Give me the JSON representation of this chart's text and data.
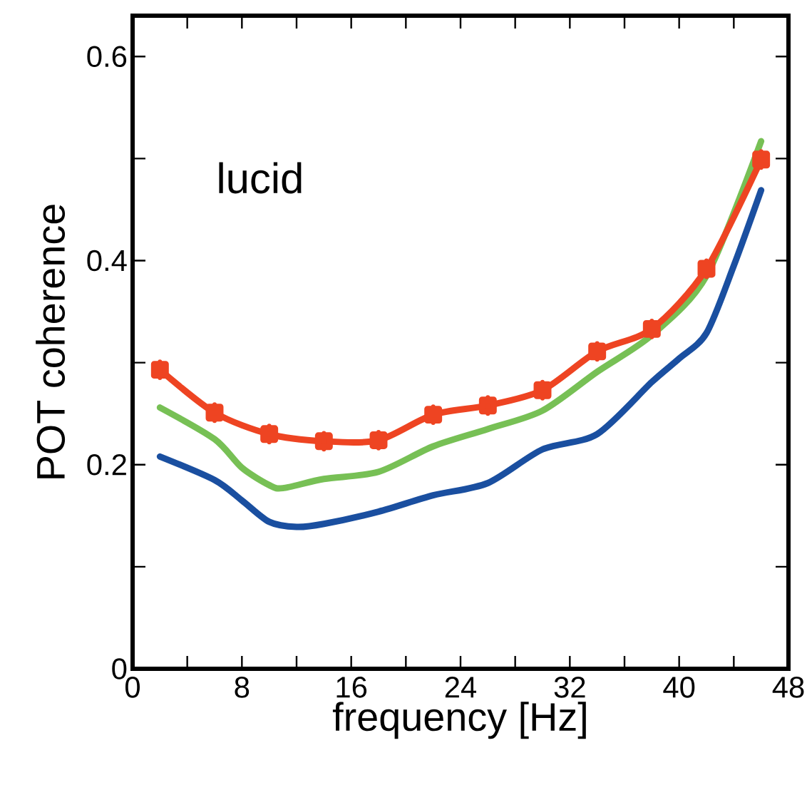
{
  "chart_data": {
    "type": "line",
    "xlabel": "frequency [Hz]",
    "ylabel": "POT coherence",
    "annotations": [
      "lucid"
    ],
    "xlim": [
      0,
      48
    ],
    "ylim": [
      0,
      0.64
    ],
    "xticks": [
      0,
      {
        "value": 4,
        "label": null
      },
      8,
      {
        "value": 12,
        "label": null
      },
      16,
      {
        "value": 20,
        "label": null
      },
      24,
      {
        "value": 28,
        "label": null
      },
      32,
      {
        "value": 36,
        "label": null
      },
      40,
      {
        "value": 44,
        "label": null
      },
      48
    ],
    "yticks": [
      0,
      {
        "value": 0.1,
        "label": null
      },
      0.2,
      {
        "value": 0.3,
        "label": null
      },
      0.4,
      {
        "value": 0.5,
        "label": null
      },
      0.6
    ],
    "series": [
      {
        "color": "#1a4fa0",
        "x": [
          2,
          6,
          8,
          10,
          12,
          14,
          18,
          22,
          26,
          30,
          34,
          38,
          40,
          42,
          44,
          46
        ],
        "values": [
          0.208,
          0.185,
          0.165,
          0.144,
          0.139,
          0.142,
          0.154,
          0.17,
          0.182,
          0.215,
          0.23,
          0.281,
          0.304,
          0.329,
          0.395,
          0.469
        ]
      },
      {
        "color": "#77c055",
        "x": [
          2,
          6,
          8,
          10,
          11,
          14,
          18,
          22,
          26,
          30,
          34,
          38,
          42,
          46
        ],
        "values": [
          0.256,
          0.225,
          0.197,
          0.18,
          0.177,
          0.186,
          0.193,
          0.218,
          0.235,
          0.253,
          0.291,
          0.327,
          0.385,
          0.517
        ]
      },
      {
        "color": "#ee4422",
        "marker": "square",
        "x": [
          2,
          6,
          10,
          14,
          18,
          22,
          26,
          30,
          34,
          38,
          42,
          46
        ],
        "values": [
          0.293,
          0.251,
          0.23,
          0.223,
          0.224,
          0.249,
          0.258,
          0.273,
          0.311,
          0.333,
          0.392,
          0.499
        ],
        "errors": [
          0.008,
          0.008,
          0.008,
          0.008,
          0.008,
          0.008,
          0.008,
          0.008,
          0.008,
          0.008,
          0.008,
          0.008
        ]
      }
    ]
  }
}
